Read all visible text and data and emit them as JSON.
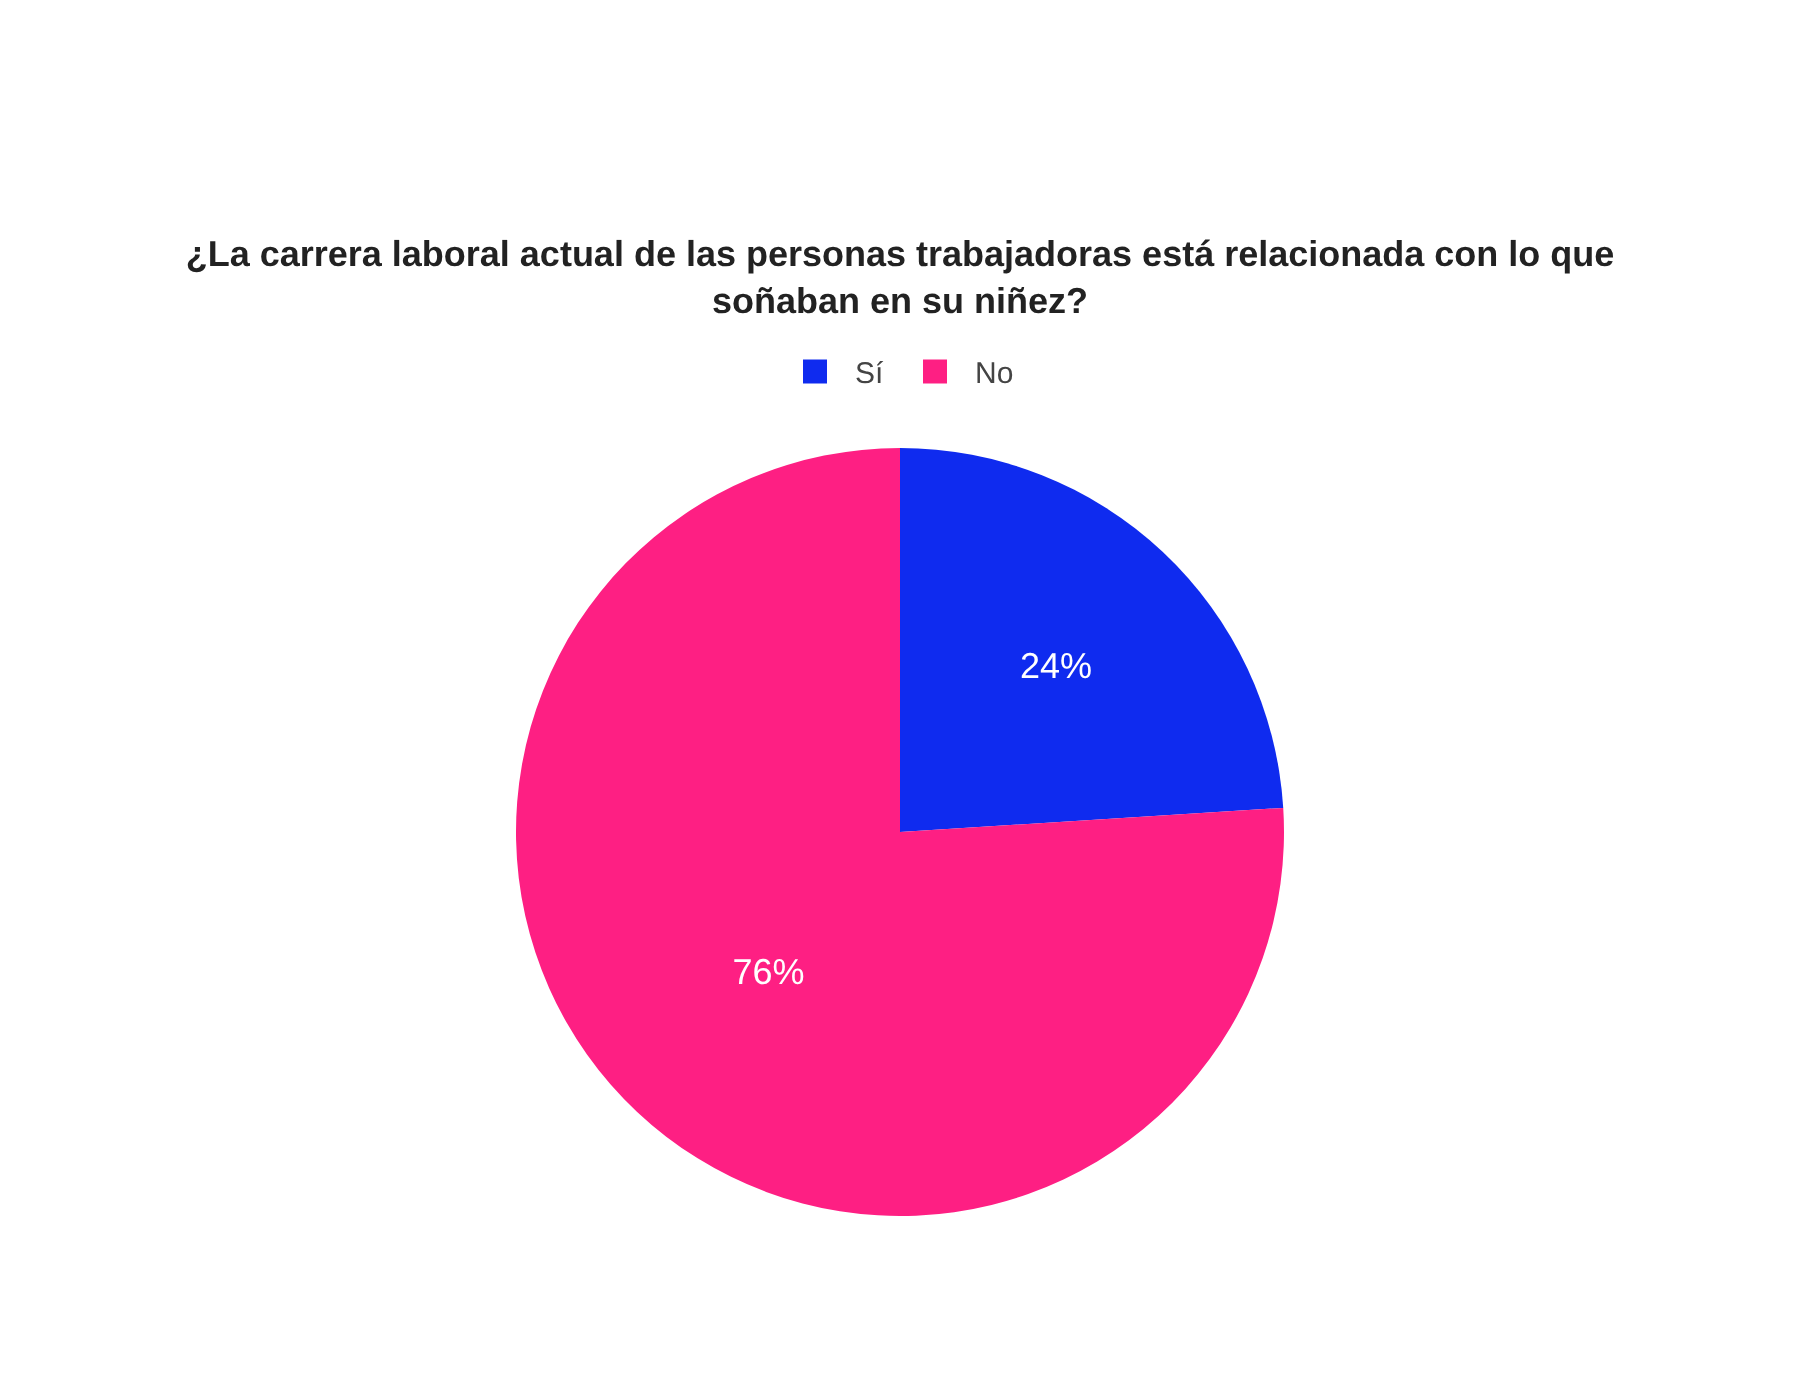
{
  "chart_data": {
    "type": "pie",
    "title": "¿La carrera laboral actual de las personas trabajadoras está relacionada con lo que\nsoñaban en su niñez?",
    "categories": [
      "Sí",
      "No"
    ],
    "values": [
      24,
      76
    ],
    "colors": [
      "#0f2bef",
      "#fe1f83"
    ],
    "value_labels": [
      "24%",
      "76%"
    ],
    "legend": "top"
  }
}
